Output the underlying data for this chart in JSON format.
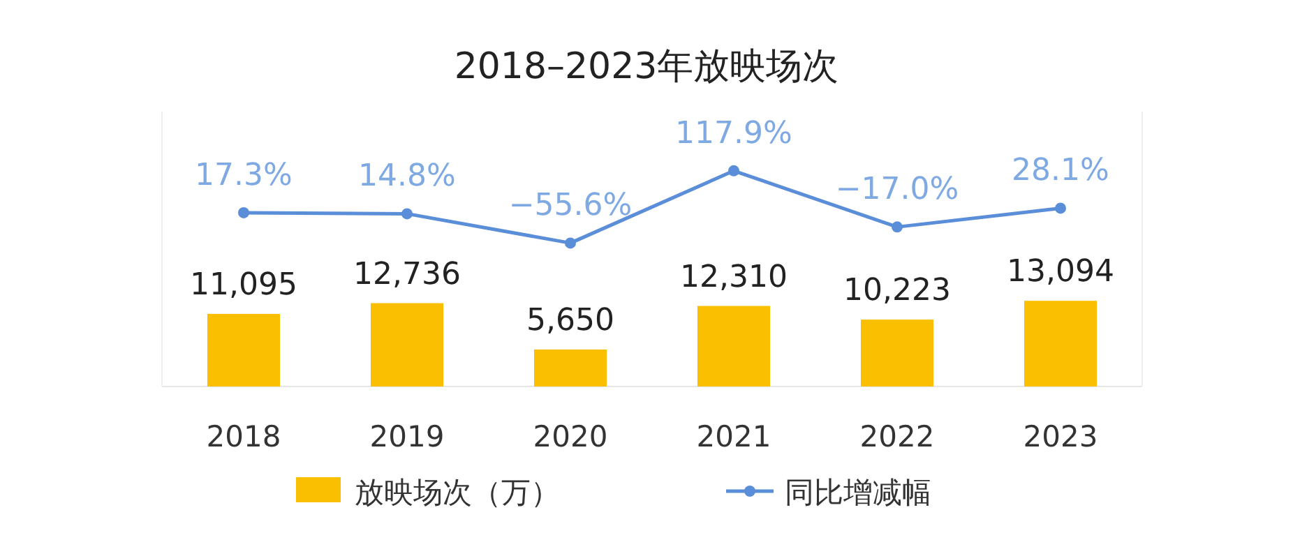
{
  "chart_data": {
    "type": "bar",
    "title": "2018–2023年放映场次",
    "categories": [
      "2018",
      "2019",
      "2020",
      "2021",
      "2022",
      "2023"
    ],
    "series": [
      {
        "name": "放映场次（万）",
        "color": "#f9bf00",
        "values": [
          11095,
          12736,
          5650,
          12310,
          10223,
          13094
        ],
        "value_labels": [
          "11,095",
          "12,736",
          "5,650",
          "12,310",
          "10,223",
          "13,094"
        ]
      },
      {
        "name": "同比增减幅",
        "type": "line",
        "axis": "y2",
        "color": "#5b8ed8",
        "values": [
          17.3,
          14.8,
          -55.6,
          117.9,
          -17.0,
          28.1
        ],
        "value_labels": [
          "17.3%",
          "14.8%",
          "−55.6%",
          "117.9%",
          "−17.0%",
          "28.1%"
        ]
      }
    ],
    "ylim": [
      0,
      42000
    ],
    "y2lim": [
      -400,
      260
    ],
    "tick_labels": "x",
    "legend": "bottom",
    "marker": "circle",
    "grid": false
  }
}
